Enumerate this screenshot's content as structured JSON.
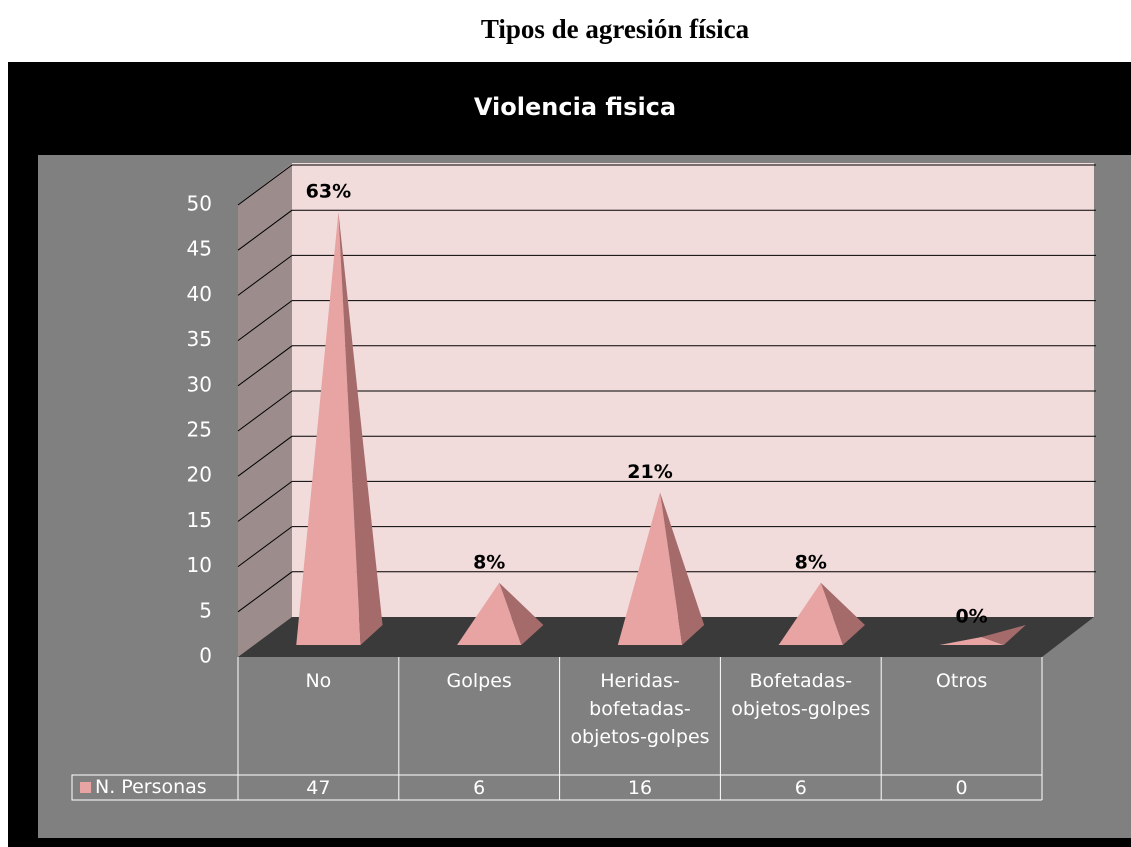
{
  "page_title": "Tipos de agresión física",
  "chart_data": {
    "type": "pyramid",
    "title": "Violencia fisica",
    "categories": [
      "No",
      "Golpes",
      "Heridas-bofetadas-objetos-golpes",
      "Bofetadas-objetos-golpes",
      "Otros"
    ],
    "series": [
      {
        "name": "N. Personas",
        "color": "#e8a3a3",
        "values": [
          47,
          6,
          16,
          6,
          0
        ],
        "value_labels": [
          "63%",
          "8%",
          "21%",
          "8%",
          "0%"
        ]
      }
    ],
    "ylim": [
      0,
      50
    ],
    "yticks": [
      0,
      5,
      10,
      15,
      20,
      25,
      30,
      35,
      40,
      45,
      50
    ],
    "grid": true
  }
}
